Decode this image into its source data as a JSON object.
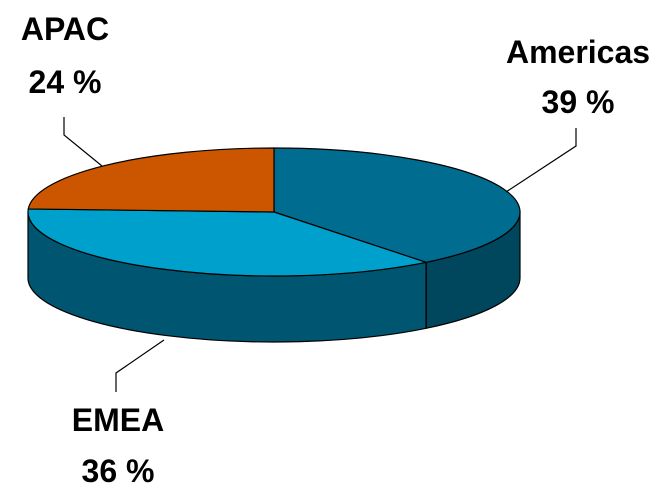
{
  "chart_data": {
    "type": "pie",
    "style": "3d",
    "slices": [
      {
        "label": "Americas",
        "value": 39,
        "value_label": "39 %",
        "color": "#006C8F",
        "side_color": "#00465D"
      },
      {
        "label": "EMEA",
        "value": 36,
        "value_label": "36 %",
        "color": "#00A0CC",
        "side_color": "#005570"
      },
      {
        "label": "APAC",
        "value": 24,
        "value_label": "24 %",
        "color": "#CC5500",
        "side_color": "#7A3300"
      }
    ],
    "legend": "none"
  }
}
